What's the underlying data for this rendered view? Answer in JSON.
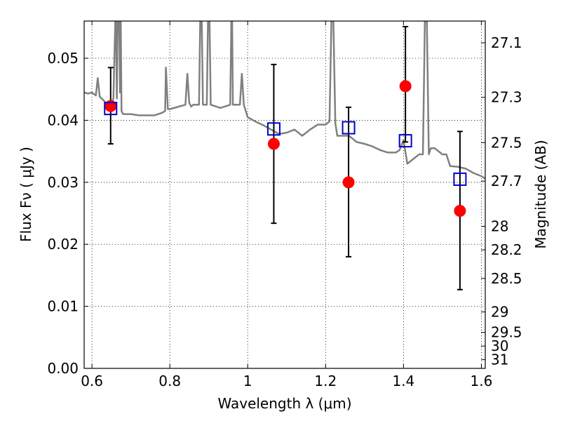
{
  "chart_data": {
    "type": "scatter",
    "xlabel": "Wavelength  λ (μm)",
    "ylabel": "Flux  Fν  ( μJy )",
    "y2label": "Magnitude (AB)",
    "xlim": [
      0.58,
      1.61
    ],
    "ylim": [
      0.0,
      0.056
    ],
    "xticks": [
      0.6,
      0.8,
      1.0,
      1.2,
      1.4,
      1.6
    ],
    "xtick_labels": [
      "0.6",
      "0.8",
      "1",
      "1.2",
      "1.4",
      "1.6"
    ],
    "yticks": [
      0.0,
      0.01,
      0.02,
      0.03,
      0.04,
      0.05
    ],
    "ytick_labels": [
      "0.00",
      "0.01",
      "0.02",
      "0.03",
      "0.04",
      "0.05"
    ],
    "y2ticks": [
      {
        "label": "27.1",
        "flux": 0.0525
      },
      {
        "label": "27.3",
        "flux": 0.0437
      },
      {
        "label": "27.5",
        "flux": 0.0364
      },
      {
        "label": "27.7",
        "flux": 0.0302
      },
      {
        "label": "28",
        "flux": 0.0229
      },
      {
        "label": "28.2",
        "flux": 0.0191
      },
      {
        "label": "28.5",
        "flux": 0.0145
      },
      {
        "label": "29",
        "flux": 0.0091
      },
      {
        "label": "29.5",
        "flux": 0.0058
      },
      {
        "label": "30",
        "flux": 0.0036
      },
      {
        "label": "31",
        "flux": 0.0014
      }
    ],
    "grid": true,
    "series": [
      {
        "kind": "model_spectrum_line",
        "color": "#808080",
        "x": [
          0.58,
          0.59,
          0.6,
          0.61,
          0.615,
          0.62,
          0.63,
          0.64,
          0.65,
          0.655,
          0.66,
          0.662,
          0.664,
          0.666,
          0.67,
          0.672,
          0.674,
          0.676,
          0.68,
          0.7,
          0.72,
          0.74,
          0.76,
          0.78,
          0.788,
          0.79,
          0.795,
          0.8,
          0.84,
          0.845,
          0.85,
          0.855,
          0.86,
          0.875,
          0.878,
          0.88,
          0.882,
          0.885,
          0.895,
          0.898,
          0.9,
          0.902,
          0.905,
          0.93,
          0.955,
          0.958,
          0.96,
          0.962,
          0.965,
          0.98,
          0.985,
          0.99,
          0.995,
          1.0,
          1.02,
          1.04,
          1.06,
          1.08,
          1.1,
          1.12,
          1.14,
          1.16,
          1.18,
          1.2,
          1.21,
          1.215,
          1.218,
          1.22,
          1.225,
          1.23,
          1.26,
          1.28,
          1.3,
          1.32,
          1.34,
          1.36,
          1.38,
          1.39,
          1.4,
          1.41,
          1.42,
          1.44,
          1.45,
          1.455,
          1.46,
          1.465,
          1.47,
          1.48,
          1.5,
          1.51,
          1.52,
          1.54,
          1.56,
          1.58,
          1.6,
          1.61
        ],
        "y": [
          0.0445,
          0.0443,
          0.0445,
          0.044,
          0.0468,
          0.0438,
          0.0432,
          0.0425,
          0.0428,
          0.0435,
          0.056,
          0.056,
          0.0435,
          0.056,
          0.056,
          0.0445,
          0.056,
          0.0415,
          0.041,
          0.041,
          0.0408,
          0.0408,
          0.0408,
          0.0412,
          0.0415,
          0.0485,
          0.0418,
          0.0418,
          0.0425,
          0.0475,
          0.0428,
          0.0422,
          0.0425,
          0.0425,
          0.056,
          0.056,
          0.056,
          0.0425,
          0.0425,
          0.056,
          0.056,
          0.056,
          0.0425,
          0.042,
          0.0425,
          0.056,
          0.056,
          0.0425,
          0.0425,
          0.0425,
          0.0475,
          0.0425,
          0.0415,
          0.0405,
          0.0398,
          0.0392,
          0.0385,
          0.0378,
          0.038,
          0.0385,
          0.0375,
          0.0385,
          0.0393,
          0.0393,
          0.0398,
          0.056,
          0.056,
          0.056,
          0.0395,
          0.0375,
          0.0375,
          0.0365,
          0.0362,
          0.0358,
          0.0352,
          0.0348,
          0.0348,
          0.0352,
          0.0368,
          0.033,
          0.0335,
          0.0345,
          0.0345,
          0.056,
          0.056,
          0.0345,
          0.0355,
          0.0355,
          0.0345,
          0.0345,
          0.0326,
          0.0325,
          0.0322,
          0.0315,
          0.031,
          0.0306
        ]
      },
      {
        "kind": "model_photometry",
        "marker": "open-square",
        "color": "#0000cc",
        "x": [
          0.648,
          1.067,
          1.259,
          1.405,
          1.545
        ],
        "y": [
          0.0419,
          0.0386,
          0.0388,
          0.0367,
          0.0305
        ]
      },
      {
        "kind": "observed_photometry",
        "marker": "filled-circle",
        "color": "#ff0000",
        "x": [
          0.648,
          1.067,
          1.259,
          1.405,
          1.545
        ],
        "y": [
          0.0423,
          0.0362,
          0.03,
          0.0455,
          0.0254
        ],
        "err_low": [
          0.0061,
          0.0128,
          0.012,
          0.009,
          0.0127
        ],
        "err_high": [
          0.0062,
          0.0128,
          0.0121,
          0.0096,
          0.0128
        ]
      }
    ]
  }
}
